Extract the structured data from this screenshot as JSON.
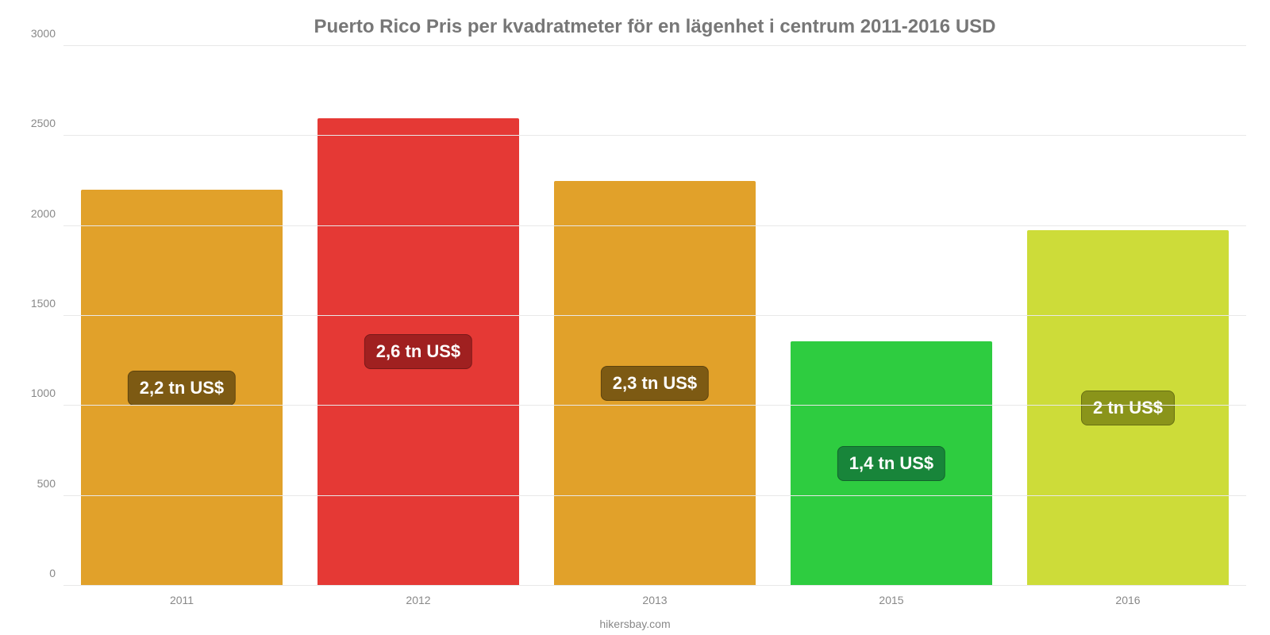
{
  "chart": {
    "type": "bar",
    "title": "Puerto Rico Pris per kvadratmeter för en lägenhet i centrum 2011-2016 USD",
    "title_color": "#777777",
    "title_fontsize": 24,
    "footer": "hikersbay.com",
    "footer_color": "#888888",
    "footer_fontsize": 14,
    "background_color": "#ffffff",
    "grid_color": "#e8e8e8",
    "axis_color": "#bfbfbf",
    "axis_label_color": "#888888",
    "axis_label_fontsize": 14,
    "ylim_min": 0,
    "ylim_max": 3000,
    "ytick_step": 500,
    "yticks": [
      0,
      500,
      1000,
      1500,
      2000,
      2500,
      3000
    ],
    "bar_width_pct": 85,
    "value_label_fontsize": 22,
    "value_label_color": "#ffffff",
    "categories": [
      "2011",
      "2012",
      "2013",
      "2015",
      "2016"
    ],
    "values": [
      2200,
      2600,
      2250,
      1360,
      1975
    ],
    "value_labels": [
      "2,2 tn US$",
      "2,6 tn US$",
      "2,3 tn US$",
      "1,4 tn US$",
      "2 tn US$"
    ],
    "bar_colors": [
      "#e1a12a",
      "#e53935",
      "#e1a12a",
      "#2ecc40",
      "#cddc39"
    ],
    "badge_bg_colors": [
      "#7d5a13",
      "#a02020",
      "#7d5a13",
      "#18853a",
      "#8a941a"
    ]
  }
}
